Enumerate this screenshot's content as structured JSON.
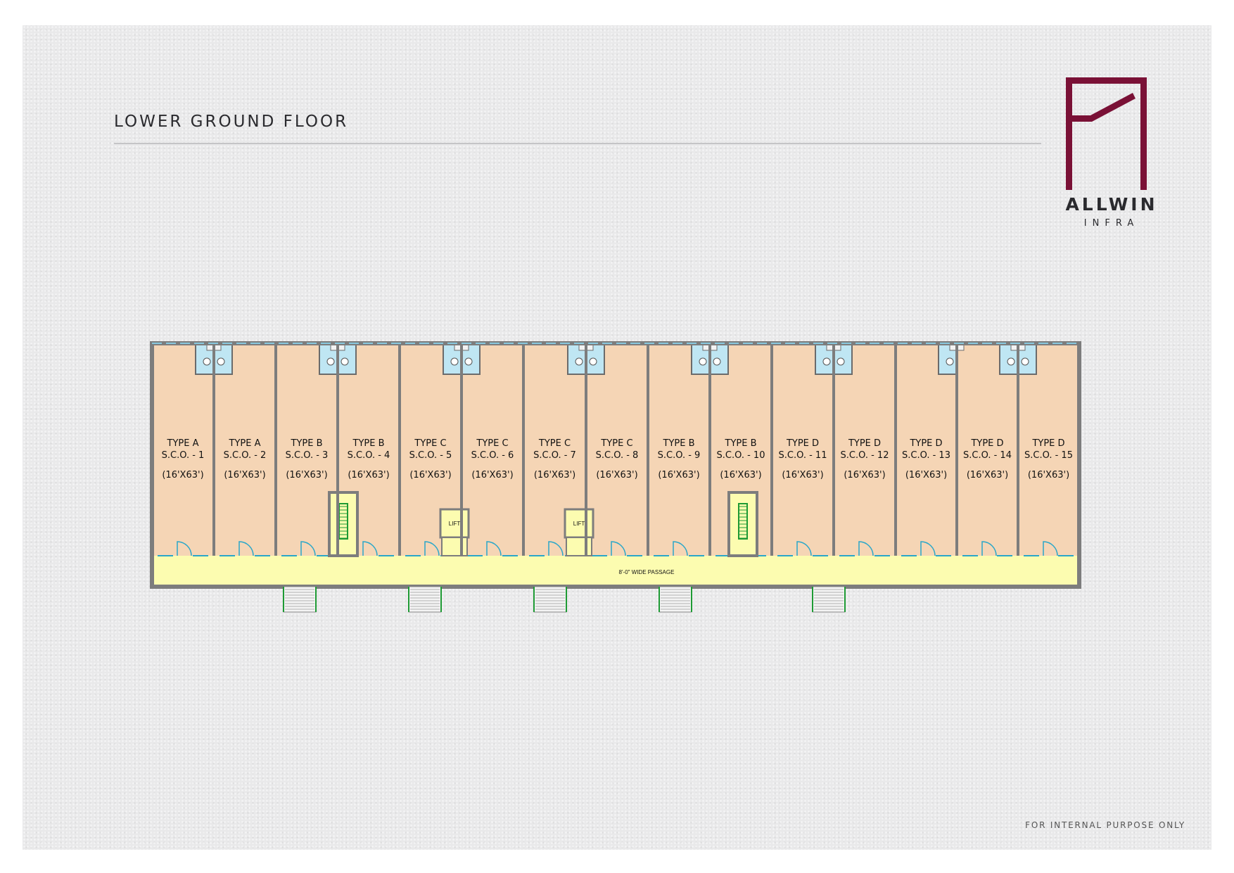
{
  "header": {
    "title": "LOWER GROUND FLOOR"
  },
  "logo": {
    "name": "ALLWIN",
    "subtitle": "INFRA",
    "color": "#7a1136"
  },
  "footer": {
    "note": "FOR INTERNAL PURPOSE ONLY"
  },
  "plan": {
    "colors": {
      "unit_fill": "#f5d5b5",
      "passage_fill": "#fcfcb0",
      "wall": "#7d7d7d",
      "stair": "#1e9a34",
      "door": "#2aa7c9"
    },
    "passage_label": "8'-0\" WIDE  PASSAGE",
    "lift_label": "LIFT",
    "units": [
      {
        "type": "TYPE A",
        "code": "S.C.O. - 1",
        "size": "(16'X63')"
      },
      {
        "type": "TYPE A",
        "code": "S.C.O. - 2",
        "size": "(16'X63')"
      },
      {
        "type": "TYPE B",
        "code": "S.C.O. - 3",
        "size": "(16'X63')"
      },
      {
        "type": "TYPE B",
        "code": "S.C.O. - 4",
        "size": "(16'X63')"
      },
      {
        "type": "TYPE C",
        "code": "S.C.O. - 5",
        "size": "(16'X63')"
      },
      {
        "type": "TYPE C",
        "code": "S.C.O. - 6",
        "size": "(16'X63')"
      },
      {
        "type": "TYPE C",
        "code": "S.C.O. - 7",
        "size": "(16'X63')"
      },
      {
        "type": "TYPE C",
        "code": "S.C.O. - 8",
        "size": "(16'X63')"
      },
      {
        "type": "TYPE B",
        "code": "S.C.O. - 9",
        "size": "(16'X63')"
      },
      {
        "type": "TYPE B",
        "code": "S.C.O. - 10",
        "size": "(16'X63')"
      },
      {
        "type": "TYPE D",
        "code": "S.C.O. - 11",
        "size": "(16'X63')"
      },
      {
        "type": "TYPE D",
        "code": "S.C.O. - 12",
        "size": "(16'X63')"
      },
      {
        "type": "TYPE D",
        "code": "S.C.O. - 13",
        "size": "(16'X63')"
      },
      {
        "type": "TYPE D",
        "code": "S.C.O. - 14",
        "size": "(16'X63')"
      },
      {
        "type": "TYPE D",
        "code": "S.C.O. - 15",
        "size": "(16'X63')"
      }
    ]
  }
}
